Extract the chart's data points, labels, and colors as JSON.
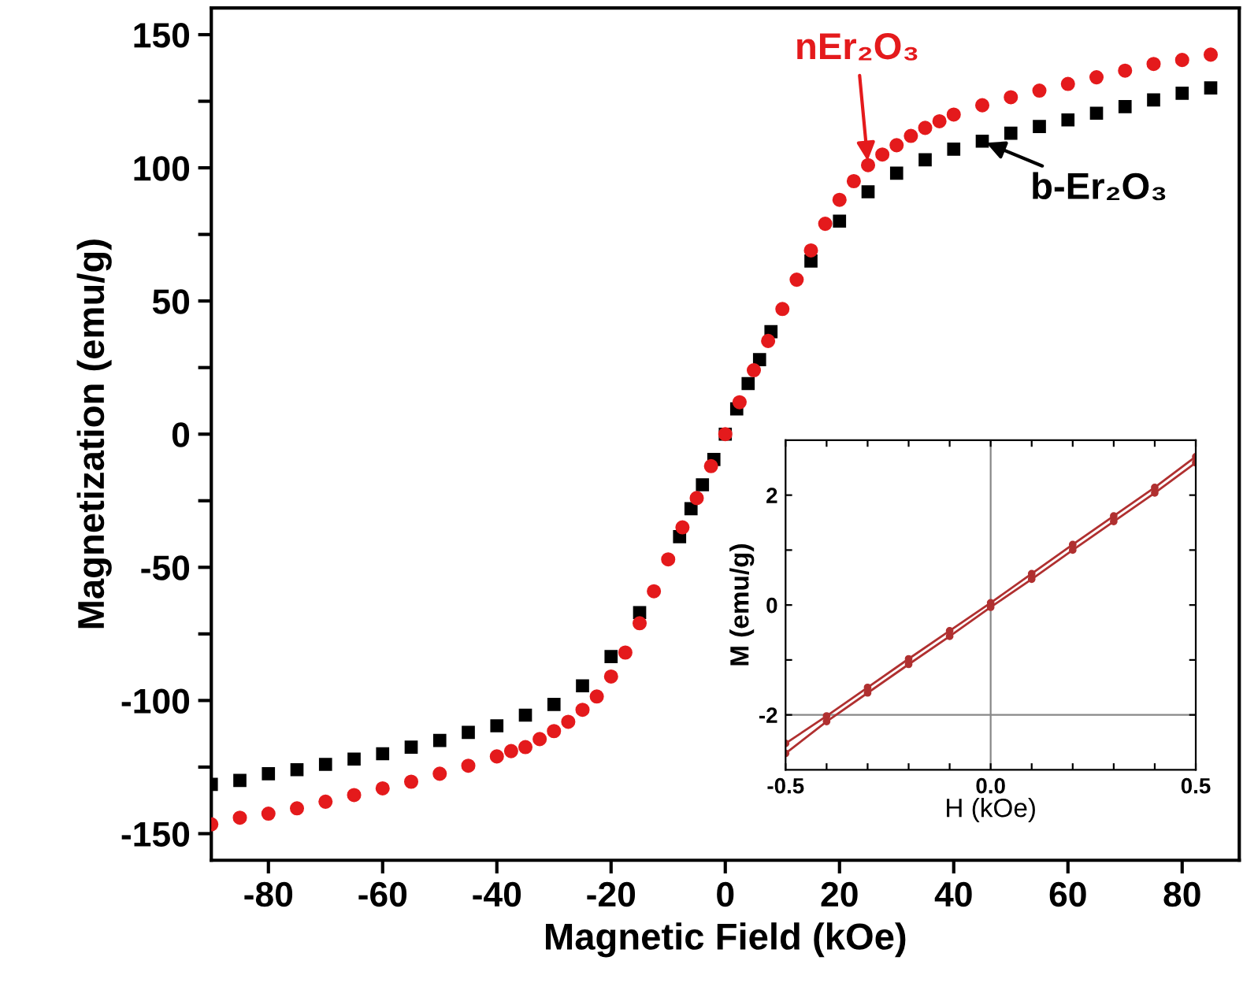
{
  "chart_data": [
    {
      "type": "scatter",
      "xlabel": "Magnetic Field (kOe)",
      "ylabel": "Magnetization (emu/g)",
      "xlim": [
        -90,
        90
      ],
      "ylim": [
        -160,
        160
      ],
      "xticks": [
        -80,
        -60,
        -40,
        -20,
        0,
        20,
        40,
        60,
        80
      ],
      "yticks": [
        -150,
        {
          "value": -125,
          "label": null
        },
        -100,
        {
          "value": -75,
          "label": null
        },
        -50,
        {
          "value": -25,
          "label": null
        },
        0,
        {
          "value": 25,
          "label": null
        },
        50,
        {
          "value": 75,
          "label": null
        },
        100,
        {
          "value": 125,
          "label": null
        },
        150
      ],
      "legend": false,
      "grid": false,
      "annotations": [
        {
          "text": "b-Er₂O₃",
          "x": 45,
          "y": 110
        },
        {
          "text": "nEr₂O₃",
          "x": 25,
          "y": 101
        }
      ],
      "series": [
        {
          "color": "#000000",
          "marker": "square",
          "x": [
            -90,
            -85,
            -80,
            -75,
            -70,
            -65,
            -60,
            -55,
            -50,
            -45,
            -40,
            -35,
            -30,
            -25,
            -20,
            -15,
            -10,
            -8,
            -6,
            -4,
            -2,
            0,
            2,
            4,
            6,
            8,
            10,
            15,
            20,
            25,
            30,
            35,
            40,
            45,
            50,
            55,
            60,
            65,
            70,
            75,
            80,
            85
          ],
          "values": [
            -131.5,
            -130,
            -127.5,
            -126,
            -124,
            -122,
            -120,
            -117.5,
            -115,
            -112,
            -109.5,
            -105.5,
            -101.5,
            -94.5,
            -83.5,
            -67,
            null,
            -38.5,
            -28,
            -19,
            -9.5,
            0,
            9.5,
            19,
            28,
            38.5,
            null,
            65,
            80,
            91,
            98,
            103,
            107,
            110,
            113,
            115.5,
            118,
            120.5,
            123,
            125.5,
            128,
            130
          ]
        },
        {
          "color": "#e41a1c",
          "marker": "circle",
          "x": [
            -90,
            -85,
            -80,
            -75,
            -70,
            -65,
            -60,
            -55,
            -50,
            -45,
            -40,
            -37.5,
            -35,
            -32.5,
            -30,
            -27.5,
            -25,
            -22.5,
            -20,
            -17.5,
            -15,
            -12.5,
            -10,
            -7.5,
            -5,
            -2.5,
            0,
            2.5,
            5,
            7.5,
            10,
            12.5,
            15,
            17.5,
            20,
            22.5,
            25,
            27.5,
            30,
            32.5,
            35,
            37.5,
            40,
            45,
            50,
            55,
            60,
            65,
            70,
            75,
            80,
            85
          ],
          "values": [
            -146.5,
            -144,
            -142.5,
            -140.5,
            -138,
            -135.5,
            -133,
            -130.5,
            -127.5,
            -124.5,
            -121,
            -119,
            -117.5,
            -114.5,
            -111.5,
            -108,
            -103.5,
            -98.5,
            -91,
            -82,
            -71,
            -59,
            -47,
            -35,
            -24,
            -12,
            0,
            12,
            24,
            35,
            47,
            58,
            69,
            79,
            88,
            95,
            101,
            105,
            108.5,
            112,
            115,
            117.5,
            120,
            123.5,
            126.5,
            129,
            131.5,
            134,
            136.5,
            139,
            140.5,
            142.5
          ]
        }
      ]
    },
    {
      "type": "line",
      "xlabel": "H (kOe)",
      "ylabel": "M (emu/g)",
      "xlim": [
        -0.5,
        0.5
      ],
      "ylim": [
        -3,
        3
      ],
      "xticks": [
        -0.5,
        {
          "value": -0.4,
          "label": null
        },
        {
          "value": -0.3,
          "label": null
        },
        {
          "value": -0.2,
          "label": null
        },
        {
          "value": -0.1,
          "label": null
        },
        {
          "value": 0,
          "label": "0.0"
        },
        {
          "value": 0.1,
          "label": null
        },
        {
          "value": 0.2,
          "label": null
        },
        {
          "value": 0.3,
          "label": null
        },
        {
          "value": 0.4,
          "label": null
        },
        0.5
      ],
      "yticks": [
        -2,
        {
          "value": -1,
          "label": null
        },
        0,
        {
          "value": 1,
          "label": null
        },
        2
      ],
      "legend": false,
      "grid": false,
      "marker": "circle",
      "ref_lines": [
        {
          "axis": "x",
          "value": 0,
          "color": "#888888"
        },
        {
          "axis": "y",
          "value": -2,
          "color": "#888888"
        }
      ],
      "series": [
        {
          "color": "#b03030",
          "x": [
            -0.5,
            -0.4,
            -0.3,
            -0.2,
            -0.1,
            0,
            0.1,
            0.2,
            0.3,
            0.4,
            0.5
          ],
          "values": [
            -2.52,
            -2.02,
            -1.5,
            -0.98,
            -0.47,
            0.04,
            0.57,
            1.1,
            1.62,
            2.14,
            2.7
          ]
        },
        {
          "color": "#b03030",
          "x": [
            -0.5,
            -0.4,
            -0.3,
            -0.2,
            -0.1,
            0,
            0.1,
            0.2,
            0.3,
            0.4,
            0.5
          ],
          "values": [
            -2.7,
            -2.12,
            -1.6,
            -1.08,
            -0.57,
            -0.04,
            0.47,
            1.0,
            1.52,
            2.04,
            2.59
          ]
        }
      ]
    }
  ]
}
